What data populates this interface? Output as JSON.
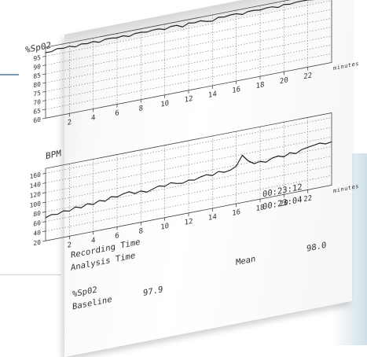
{
  "chart_data": [
    {
      "type": "line",
      "ylabel": "%Sp02",
      "xlabel": "minutes",
      "y_ticks": [
        "95",
        "90",
        "85",
        "80",
        "75",
        "70",
        "65",
        "60"
      ],
      "x_ticks": [
        "2",
        "4",
        "6",
        "8",
        "10",
        "12",
        "14",
        "16",
        "18",
        "20",
        "22"
      ],
      "ylim": [
        60,
        100
      ],
      "xlim": [
        0,
        24
      ],
      "grid": true,
      "series": [
        {
          "x": [
            0,
            0.5,
            1,
            1.5,
            2,
            2.5,
            3,
            3.5,
            4,
            4.5,
            5,
            5.5,
            6,
            6.5,
            7,
            7.5,
            8,
            8.5,
            9,
            9.5,
            10,
            10.5,
            11,
            11.5,
            12,
            12.5,
            13,
            13.5,
            14,
            14.5,
            15,
            15.5,
            16,
            16.5,
            17,
            17.5,
            18,
            18.5,
            19,
            19.5,
            20,
            20.5,
            21,
            21.5,
            22,
            22.5,
            23,
            23.5,
            24
          ],
          "y": [
            97,
            97,
            98,
            97.5,
            98,
            97,
            98,
            97.5,
            98,
            97,
            98,
            98,
            97.5,
            98,
            97,
            98,
            98,
            97.5,
            98,
            98,
            97,
            98,
            98,
            96.5,
            98,
            97.5,
            98,
            97,
            96.5,
            98,
            97.5,
            98,
            98,
            97,
            98,
            98,
            97.5,
            98,
            98,
            97,
            98,
            97.5,
            98,
            98,
            98,
            97.5,
            98,
            98,
            98
          ]
        }
      ]
    },
    {
      "type": "line",
      "ylabel": "BPM",
      "xlabel": "minutes",
      "y_ticks": [
        "160",
        "140",
        "120",
        "100",
        "80",
        "60",
        "40",
        "20"
      ],
      "x_ticks": [
        "2",
        "4",
        "6",
        "8",
        "10",
        "12",
        "14",
        "16",
        "18",
        "20",
        "22"
      ],
      "ylim": [
        20,
        170
      ],
      "xlim": [
        0,
        24
      ],
      "grid": true,
      "series": [
        {
          "x": [
            0,
            0.5,
            1,
            1.5,
            2,
            2.5,
            3,
            3.5,
            4,
            4.5,
            5,
            5.5,
            6,
            6.5,
            7,
            7.5,
            8,
            8.5,
            9,
            9.5,
            10,
            10.5,
            11,
            11.5,
            12,
            12.5,
            13,
            13.5,
            14,
            14.5,
            15,
            15.5,
            16,
            16.5,
            17,
            17.5,
            18,
            18.5,
            19,
            19.5,
            20,
            20.5,
            21,
            21.5,
            22,
            22.5,
            23,
            23.5,
            24
          ],
          "y": [
            68,
            72,
            70,
            75,
            72,
            78,
            74,
            80,
            76,
            82,
            78,
            85,
            82,
            86,
            88,
            82,
            85,
            80,
            84,
            88,
            85,
            90,
            86,
            84,
            88,
            86,
            90,
            92,
            88,
            94,
            90,
            92,
            98,
            118,
            104,
            96,
            98,
            94,
            100,
            102,
            98,
            104,
            100,
            106,
            108,
            110,
            112,
            108,
            110
          ]
        }
      ]
    }
  ],
  "summary": {
    "clock_recording": "00:23:12",
    "clock_analysis": "00:23:04",
    "recording_label": "Recording Time",
    "analysis_label": "Analysis Time",
    "spo2_label": "%Sp02",
    "baseline_label": "Baseline",
    "baseline_value": "97.9",
    "mean_label": "Mean",
    "mean_value": "98.0"
  }
}
